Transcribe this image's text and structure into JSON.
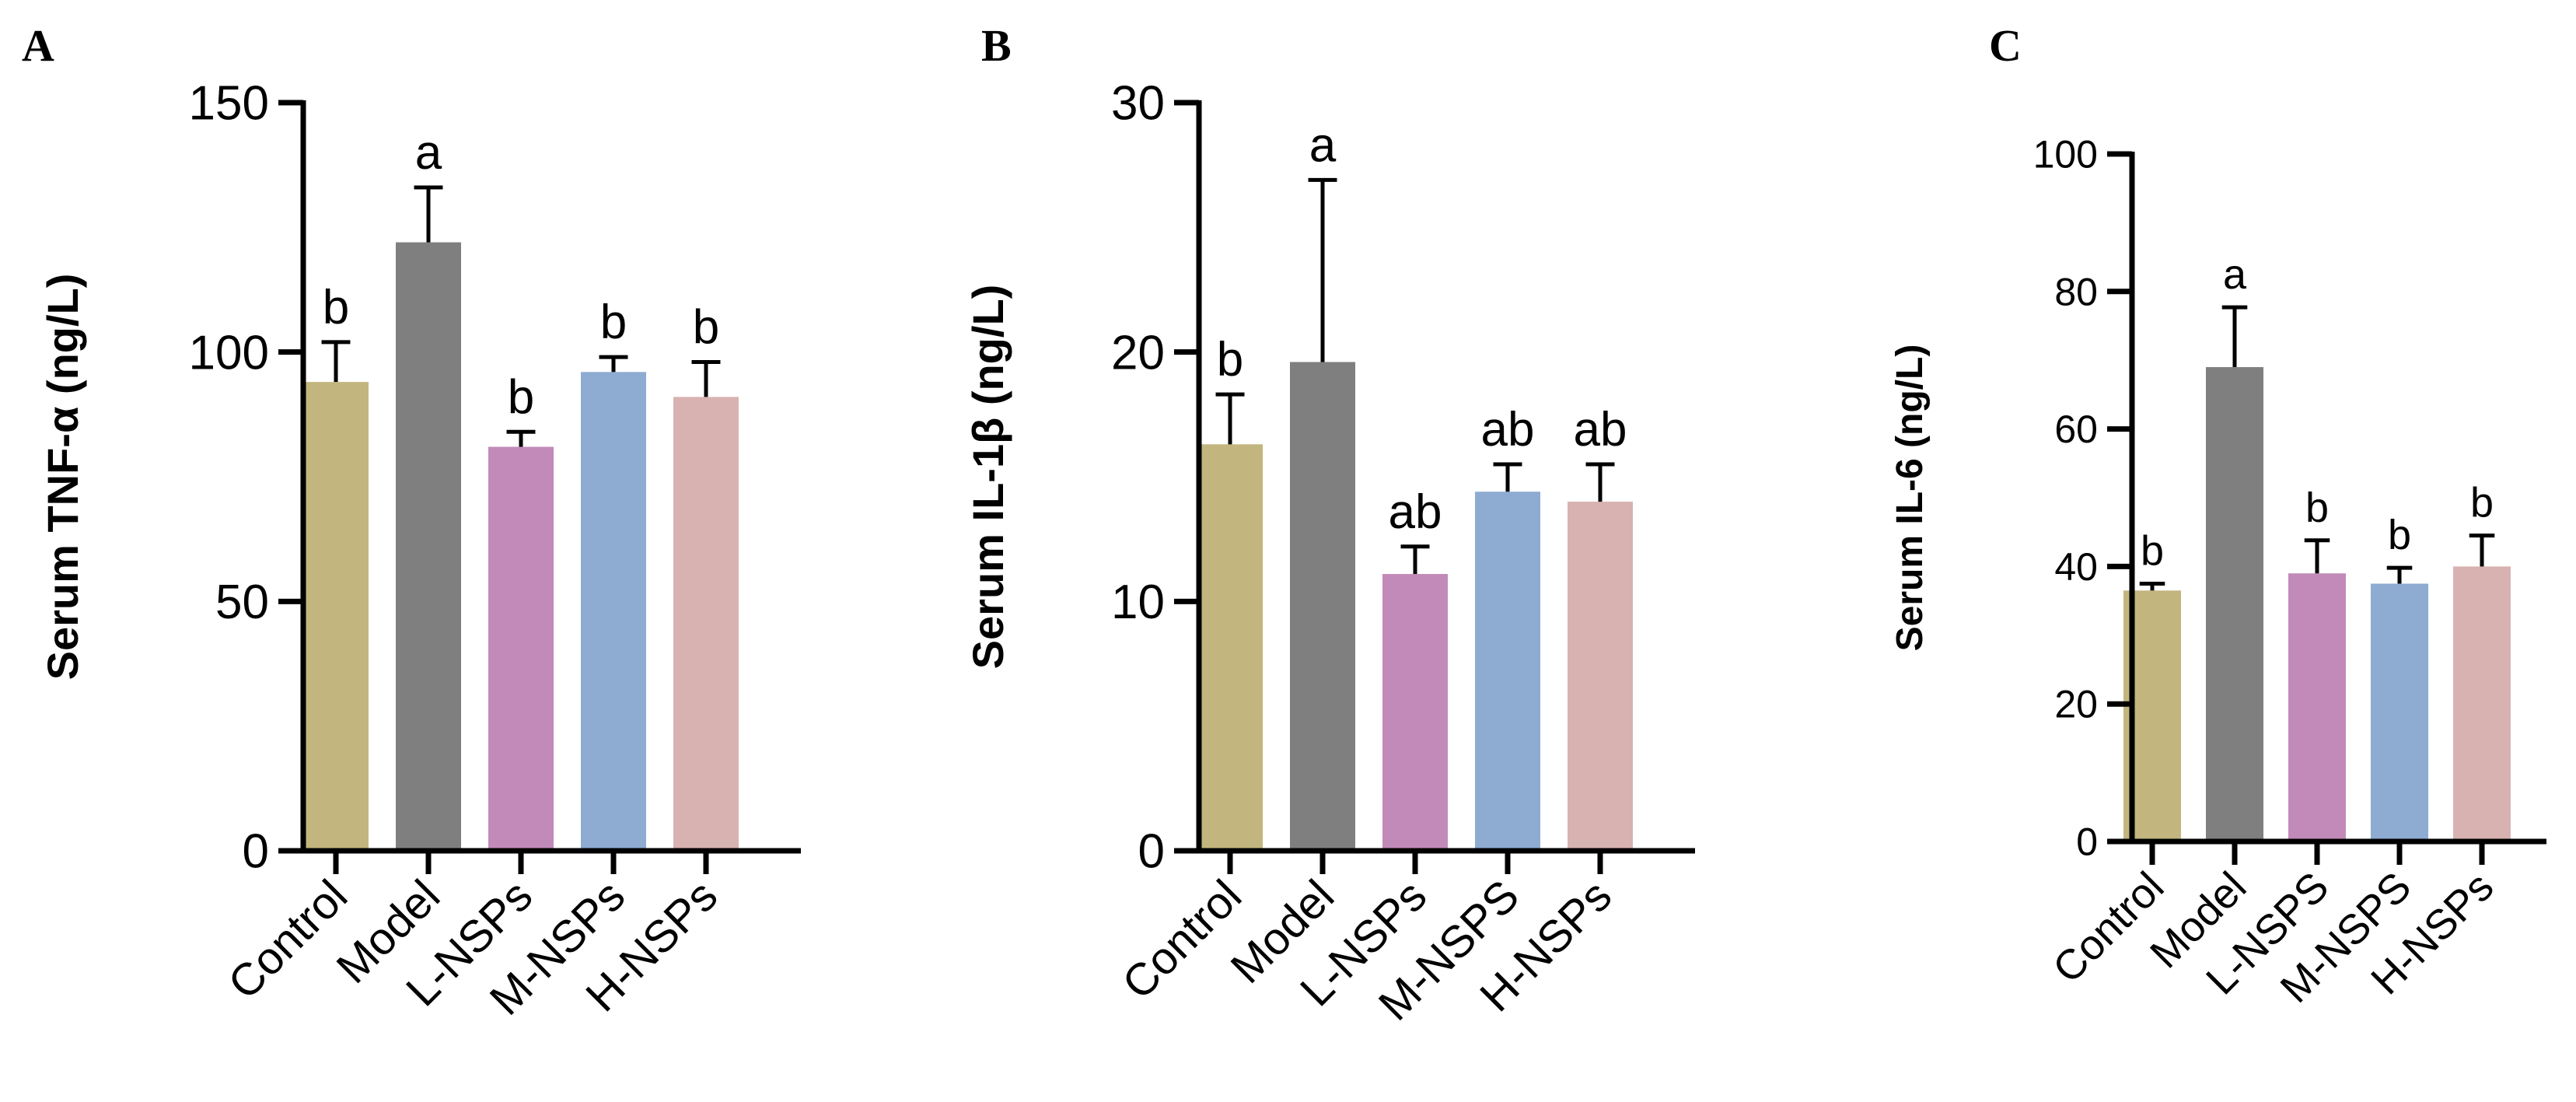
{
  "colors": {
    "axis": "#000000",
    "bars": [
      "#c2b67e",
      "#7f7f7f",
      "#c28ab9",
      "#8eabd2",
      "#d8b2b0"
    ]
  },
  "chart_data": [
    {
      "panel": "A",
      "type": "bar",
      "title": "",
      "xlabel": "",
      "ylabel": "Serum TNF-α (ng/L)",
      "categories": [
        "Control",
        "Model",
        "L-NSPs",
        "M-NSPs",
        "H-NSPs"
      ],
      "values": [
        94,
        122,
        81,
        96,
        91
      ],
      "error_upper": [
        8,
        11,
        3,
        3,
        7
      ],
      "letters": [
        "b",
        "a",
        "b",
        "b",
        "b"
      ],
      "ylim": [
        0,
        150
      ],
      "yticks": [
        0,
        50,
        100,
        150
      ],
      "grid": false,
      "legend": "none"
    },
    {
      "panel": "B",
      "type": "bar",
      "title": "",
      "xlabel": "",
      "ylabel": "Serum IL-1β (ng/L)",
      "categories": [
        "Control",
        "Model",
        "L-NSPs",
        "M-NSPS",
        "H-NSPs"
      ],
      "values": [
        16.3,
        19.6,
        11.1,
        14.4,
        14.0
      ],
      "error_upper": [
        2.0,
        7.3,
        1.1,
        1.1,
        1.5
      ],
      "letters": [
        "b",
        "a",
        "ab",
        "ab",
        "ab"
      ],
      "ylim": [
        0,
        30
      ],
      "yticks": [
        0,
        10,
        20,
        30
      ],
      "grid": false,
      "legend": "none"
    },
    {
      "panel": "C",
      "type": "bar",
      "title": "",
      "xlabel": "",
      "ylabel": "Serum IL-6 (ng/L)",
      "categories": [
        "Control",
        "Model",
        "L-NSPS",
        "M-NSPS",
        "H-NSPs"
      ],
      "values": [
        36.5,
        69,
        39,
        37.5,
        40
      ],
      "error_upper": [
        1.0,
        8.7,
        4.8,
        2.3,
        4.5
      ],
      "letters": [
        "b",
        "a",
        "b",
        "b",
        "b"
      ],
      "ylim": [
        0,
        100
      ],
      "yticks": [
        0,
        20,
        40,
        60,
        80,
        100
      ],
      "grid": false,
      "legend": "none"
    }
  ]
}
